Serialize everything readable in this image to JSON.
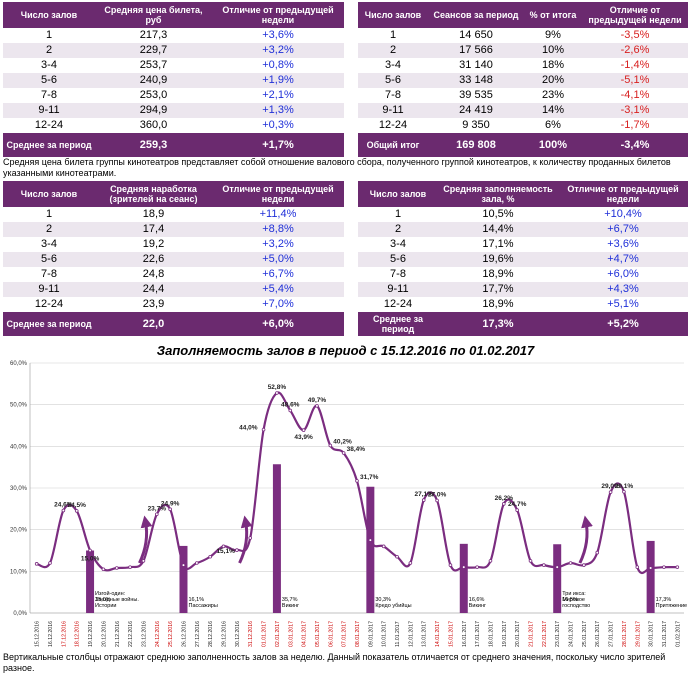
{
  "table_price": {
    "headers": [
      "Число залов",
      "Средняя цена билета, руб",
      "Отличие от предыдущей недели"
    ],
    "rows": [
      [
        "1",
        "217,3",
        "+3,6%"
      ],
      [
        "2",
        "229,7",
        "+3,2%"
      ],
      [
        "3-4",
        "253,7",
        "+0,8%"
      ],
      [
        "5-6",
        "240,9",
        "+1,9%"
      ],
      [
        "7-8",
        "253,0",
        "+2,1%"
      ],
      [
        "9-11",
        "294,9",
        "+1,3%"
      ],
      [
        "12-24",
        "360,0",
        "+0,3%"
      ]
    ],
    "footer": [
      "Среднее за период",
      "259,3",
      "+1,7%"
    ]
  },
  "table_sessions": {
    "headers": [
      "Число залов",
      "Сеансов за период",
      "% от итога",
      "Отличие от предыдущей недели"
    ],
    "rows": [
      [
        "1",
        "14 650",
        "9%",
        "-3,5%"
      ],
      [
        "2",
        "17 566",
        "10%",
        "-2,6%"
      ],
      [
        "3-4",
        "31 140",
        "18%",
        "-1,4%"
      ],
      [
        "5-6",
        "33 148",
        "20%",
        "-5,1%"
      ],
      [
        "7-8",
        "39 535",
        "23%",
        "-4,1%"
      ],
      [
        "9-11",
        "24 419",
        "14%",
        "-3,1%"
      ],
      [
        "12-24",
        "9 350",
        "6%",
        "-1,7%"
      ]
    ],
    "footer": [
      "Общий итог",
      "169 808",
      "100%",
      "-3,4%"
    ]
  },
  "note_price": "Средняя цена билета группы кинотеатров представляет собой отношение валового сбора, полученного группой кинотеатров, к количеству проданных билетов указанными кинотеатрами.",
  "table_attendance": {
    "headers": [
      "Число залов",
      "Средняя наработка (зрителей на сеанс)",
      "Отличие от предыдущей недели"
    ],
    "rows": [
      [
        "1",
        "18,9",
        "+11,4%"
      ],
      [
        "2",
        "17,4",
        "+8,8%"
      ],
      [
        "3-4",
        "19,2",
        "+3,2%"
      ],
      [
        "5-6",
        "22,6",
        "+5,0%"
      ],
      [
        "7-8",
        "24,8",
        "+6,7%"
      ],
      [
        "9-11",
        "24,4",
        "+5,4%"
      ],
      [
        "12-24",
        "23,9",
        "+7,0%"
      ]
    ],
    "footer": [
      "Среднее за период",
      "22,0",
      "+6,0%"
    ]
  },
  "table_occupancy": {
    "headers": [
      "Число залов",
      "Средняя заполняемость зала, %",
      "Отличие от предыдущей недели"
    ],
    "rows": [
      [
        "1",
        "10,5%",
        "+10,4%"
      ],
      [
        "2",
        "14,4%",
        "+6,7%"
      ],
      [
        "3-4",
        "17,1%",
        "+3,6%"
      ],
      [
        "5-6",
        "19,6%",
        "+4,7%"
      ],
      [
        "7-8",
        "18,9%",
        "+6,0%"
      ],
      [
        "9-11",
        "17,7%",
        "+4,3%"
      ],
      [
        "12-24",
        "18,9%",
        "+5,1%"
      ]
    ],
    "footer": [
      "Среднее за период",
      "17,3%",
      "+5,2%"
    ]
  },
  "note_bottom": "Вертикальные столбцы отражают среднюю заполненность залов за неделю. Данный показатель отличается от среднего значения, поскольку число зрителей разное.",
  "colors": {
    "header_bg": "#6b2a6f",
    "row_alt": "#ece6ee",
    "positive": "#1f2fd8",
    "negative": "#d81f1f",
    "line": "#7b2d80",
    "bar": "#7b2d80",
    "red_date": "#cc0000"
  },
  "chart_data": {
    "type": "line",
    "title": "Заполняемость залов в период с 15.12.2016 по 01.02.2017",
    "ylim": [
      0,
      60
    ],
    "yticks": [
      "0,0%",
      "10,0%",
      "20,0%",
      "30,0%",
      "40,0%",
      "50,0%",
      "60,0%"
    ],
    "x": [
      "15.12.2016",
      "16.12.2016",
      "17.12.2016",
      "18.12.2016",
      "19.12.2016",
      "20.12.2016",
      "21.12.2016",
      "22.12.2016",
      "23.12.2016",
      "24.12.2016",
      "25.12.2016",
      "26.12.2016",
      "27.12.2016",
      "28.12.2016",
      "29.12.2016",
      "30.12.2016",
      "31.12.2016",
      "01.01.2017",
      "02.01.2017",
      "03.01.2017",
      "04.01.2017",
      "05.01.2017",
      "06.01.2017",
      "07.01.2017",
      "08.01.2017",
      "09.01.2017",
      "10.01.2017",
      "11.01.2017",
      "12.01.2017",
      "13.01.2017",
      "14.01.2017",
      "15.01.2017",
      "16.01.2017",
      "17.01.2017",
      "18.01.2017",
      "19.01.2017",
      "20.01.2017",
      "21.01.2017",
      "22.01.2017",
      "23.01.2017",
      "24.01.2017",
      "25.01.2017",
      "26.01.2017",
      "27.01.2017",
      "28.01.2017",
      "29.01.2017",
      "30.01.2017",
      "31.01.2017",
      "01.02.2017"
    ],
    "red_dates": [
      "17.12.2016",
      "18.12.2016",
      "24.12.2016",
      "25.12.2016",
      "31.12.2016",
      "01.01.2017",
      "02.01.2017",
      "03.01.2017",
      "04.01.2017",
      "05.01.2017",
      "06.01.2017",
      "07.01.2017",
      "08.01.2017",
      "14.01.2017",
      "15.01.2017",
      "21.01.2017",
      "22.01.2017",
      "28.01.2017",
      "29.01.2017"
    ],
    "series": [
      {
        "name": "Заполняемость",
        "values": [
          11.8,
          12.0,
          24.6,
          24.5,
          15.0,
          10.5,
          10.8,
          11.0,
          12.5,
          23.7,
          24.9,
          11.5,
          12.0,
          13.5,
          16.0,
          15.1,
          18.0,
          44.0,
          52.8,
          48.6,
          43.9,
          49.7,
          40.2,
          38.4,
          31.7,
          17.5,
          16.0,
          13.5,
          12.0,
          27.1,
          27.0,
          11.5,
          11.0,
          11.0,
          12.5,
          26.2,
          24.7,
          12.5,
          11.5,
          11.0,
          12.0,
          11.5,
          14.5,
          29.0,
          29.1,
          11.0,
          10.8,
          11.0,
          11.0
        ]
      }
    ],
    "point_labels": [
      {
        "i": 2,
        "text": "24,6%"
      },
      {
        "i": 3,
        "text": "24,5%"
      },
      {
        "i": 4,
        "text": "15,0%"
      },
      {
        "i": 9,
        "text": "23,7%"
      },
      {
        "i": 10,
        "text": "24,9%"
      },
      {
        "i": 15,
        "text": "15,1%"
      },
      {
        "i": 17,
        "text": "44,0%"
      },
      {
        "i": 18,
        "text": "52,8%"
      },
      {
        "i": 19,
        "text": "48,6%"
      },
      {
        "i": 20,
        "text": "43,9%"
      },
      {
        "i": 21,
        "text": "49,7%"
      },
      {
        "i": 22,
        "text": "40,2%"
      },
      {
        "i": 23,
        "text": "38,4%"
      },
      {
        "i": 24,
        "text": "31,7%"
      },
      {
        "i": 29,
        "text": "27,1%"
      },
      {
        "i": 30,
        "text": "27,0%"
      },
      {
        "i": 35,
        "text": "26,2%"
      },
      {
        "i": 36,
        "text": "24,7%"
      },
      {
        "i": 43,
        "text": "29,0%"
      },
      {
        "i": 44,
        "text": "29,1%"
      }
    ],
    "bars": [
      {
        "i": 4,
        "value": 15.0,
        "label": "15,0%",
        "film": "Изгой-один: Звездные войны. Истории"
      },
      {
        "i": 11,
        "value": 16.1,
        "label": "16,1%",
        "film": "Пассажиры"
      },
      {
        "i": 18,
        "value": 35.7,
        "label": "35,7%",
        "film": "Викинг"
      },
      {
        "i": 25,
        "value": 30.3,
        "label": "30,3%",
        "film": "Кредо убийцы"
      },
      {
        "i": 32,
        "value": 16.6,
        "label": "16,6%",
        "film": "Викинг"
      },
      {
        "i": 39,
        "value": 16.5,
        "label": "16,5%",
        "film": "Три икса: Мировое господство"
      },
      {
        "i": 46,
        "value": 17.3,
        "label": "17,3%",
        "film": "Притяжение"
      }
    ],
    "arrows": [
      {
        "i": 8
      },
      {
        "i": 15.5
      },
      {
        "i": 41
      }
    ]
  }
}
